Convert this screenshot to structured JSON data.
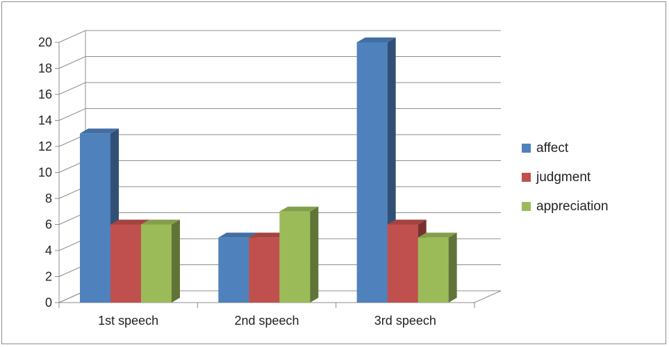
{
  "chart_data": {
    "type": "bar",
    "categories": [
      "1st speech",
      "2nd speech",
      "3rd speech"
    ],
    "series": [
      {
        "name": "affect",
        "values": [
          13,
          5,
          20
        ],
        "color": "#4f81bd"
      },
      {
        "name": "judgment",
        "values": [
          6,
          5,
          6
        ],
        "color": "#c0504d"
      },
      {
        "name": "appreciation",
        "values": [
          6,
          7,
          5
        ],
        "color": "#9bbb59"
      }
    ],
    "ylim": [
      0,
      20
    ],
    "yticks": [
      "0",
      "2",
      "4",
      "6",
      "8",
      "10",
      "12",
      "14",
      "16",
      "18",
      "20"
    ],
    "grid": true,
    "legend": "right",
    "style": "3d-clustered-column"
  }
}
